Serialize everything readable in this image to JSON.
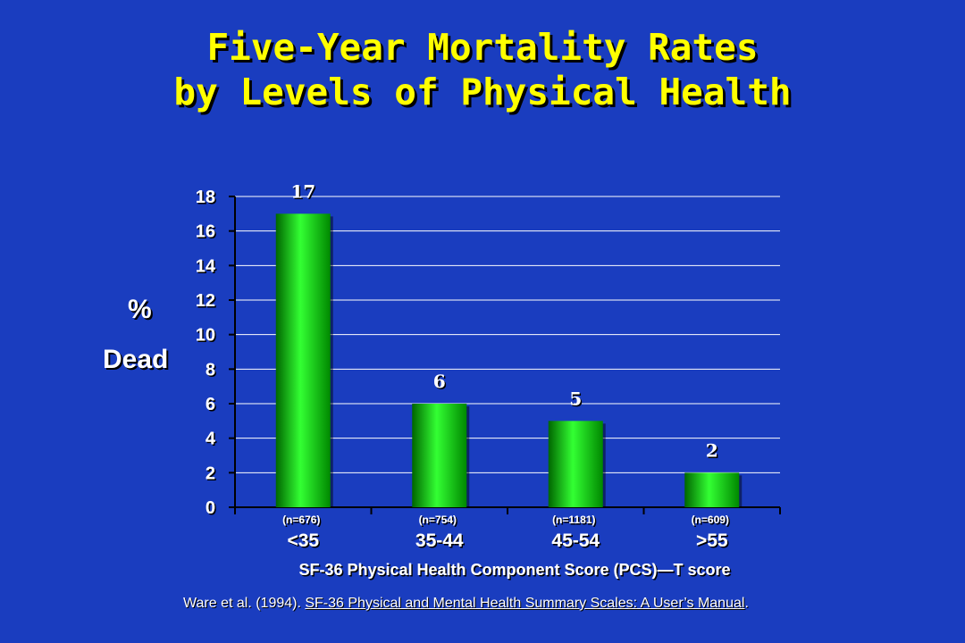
{
  "slide": {
    "title_line1": "Five-Year Mortality Rates",
    "title_line2": "by Levels of Physical Health",
    "ylabel_line1": "%",
    "ylabel_line2": "Dead",
    "citation_prefix": "Ware et al.  (1994).  ",
    "citation_book": "SF-36 Physical and Mental Health Summary Scales: A User’s Manual",
    "citation_suffix": "."
  },
  "chart_data": {
    "type": "bar",
    "categories": [
      "<35",
      "35-44",
      "45-54",
      ">55"
    ],
    "sample_sizes": [
      "(n=676)",
      "(n=754)",
      "(n=1181)",
      "(n=609)"
    ],
    "values": [
      17,
      6,
      5,
      2
    ],
    "data_labels": [
      "17",
      "6",
      "5",
      "2"
    ],
    "xlabel": "SF-36 Physical Health Component Score (PCS)—T score",
    "ylabel": "% Dead",
    "ylim": [
      0,
      18
    ],
    "yticks": [
      0,
      2,
      4,
      6,
      8,
      10,
      12,
      14,
      16,
      18
    ],
    "grid": true,
    "colors": {
      "bar": "#00cc00",
      "bar_highlight": "#33ff33",
      "bar_shadow": "#006600",
      "grid": "#ffffff",
      "text": "#ffffff"
    }
  }
}
